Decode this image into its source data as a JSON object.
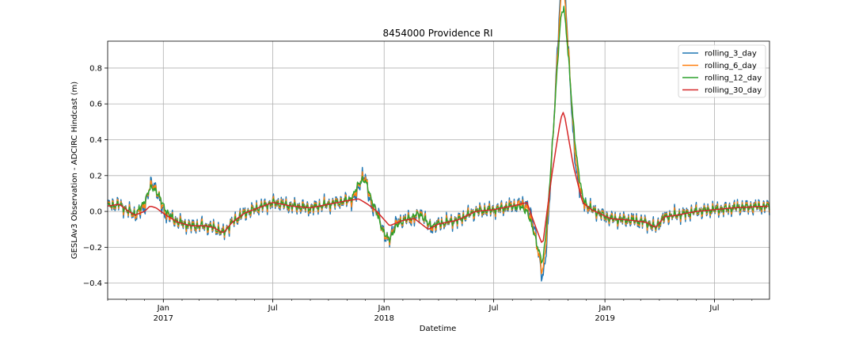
{
  "chart_data": {
    "type": "line",
    "title": "8454000 Providence RI",
    "xlabel": "Datetime",
    "ylabel": "GESLAv3 Observation - ADCIRC Hindcast (m)",
    "x_range": [
      "2016-10-01",
      "2019-09-30"
    ],
    "ylim": [
      -0.49,
      0.95
    ],
    "y_ticks": [
      -0.4,
      -0.2,
      0.0,
      0.2,
      0.4,
      0.6,
      0.8
    ],
    "y_tick_labels": [
      "−0.4",
      "−0.2",
      "0.0",
      "0.2",
      "0.4",
      "0.6",
      "0.8"
    ],
    "x_major_ticks": [
      {
        "date": "2017-01-01",
        "label": "Jan",
        "year": "2017"
      },
      {
        "date": "2017-07-01",
        "label": "Jul",
        "year": ""
      },
      {
        "date": "2018-01-01",
        "label": "Jan",
        "year": "2018"
      },
      {
        "date": "2018-07-01",
        "label": "Jul",
        "year": ""
      },
      {
        "date": "2019-01-01",
        "label": "Jan",
        "year": "2019"
      },
      {
        "date": "2019-07-01",
        "label": "Jul",
        "year": ""
      }
    ],
    "grid": true,
    "legend_position": "top-right",
    "series": [
      {
        "name": "rolling_3_day",
        "color": "#1f77b4",
        "noise_amplitude": 0.025
      },
      {
        "name": "rolling_6_day",
        "color": "#ff7f0e",
        "noise_amplitude": 0.018
      },
      {
        "name": "rolling_12_day",
        "color": "#2ca02c",
        "noise_amplitude": 0.011
      },
      {
        "name": "rolling_30_day",
        "color": "#d62728",
        "noise_amplitude": 0.0
      }
    ],
    "baseline": [
      [
        "2016-10-01",
        0.03
      ],
      [
        "2016-10-20",
        0.04
      ],
      [
        "2016-11-05",
        0.0
      ],
      [
        "2016-11-15",
        -0.02
      ],
      [
        "2016-12-01",
        0.0
      ],
      [
        "2016-12-10",
        0.03
      ],
      [
        "2016-12-20",
        0.02
      ],
      [
        "2017-01-05",
        -0.02
      ],
      [
        "2017-01-25",
        -0.06
      ],
      [
        "2017-02-15",
        -0.08
      ],
      [
        "2017-03-10",
        -0.08
      ],
      [
        "2017-03-25",
        -0.09
      ],
      [
        "2017-04-10",
        -0.12
      ],
      [
        "2017-04-25",
        -0.06
      ],
      [
        "2017-05-15",
        -0.01
      ],
      [
        "2017-06-15",
        0.03
      ],
      [
        "2017-07-01",
        0.05
      ],
      [
        "2017-08-01",
        0.03
      ],
      [
        "2017-09-01",
        0.02
      ],
      [
        "2017-10-01",
        0.04
      ],
      [
        "2017-11-01",
        0.06
      ],
      [
        "2017-11-20",
        0.07
      ],
      [
        "2017-12-05",
        0.04
      ],
      [
        "2017-12-20",
        0.0
      ],
      [
        "2018-01-10",
        -0.08
      ],
      [
        "2018-02-01",
        -0.05
      ],
      [
        "2018-02-20",
        -0.04
      ],
      [
        "2018-03-15",
        -0.1
      ],
      [
        "2018-04-01",
        -0.07
      ],
      [
        "2018-05-01",
        -0.05
      ],
      [
        "2018-06-01",
        0.0
      ],
      [
        "2018-07-01",
        0.01
      ],
      [
        "2018-08-01",
        0.03
      ],
      [
        "2018-08-25",
        0.05
      ],
      [
        "2018-09-10",
        -0.1
      ],
      [
        "2018-09-20",
        -0.19
      ],
      [
        "2018-10-05",
        0.2
      ],
      [
        "2018-10-20",
        0.52
      ],
      [
        "2018-10-25",
        0.56
      ],
      [
        "2018-11-10",
        0.25
      ],
      [
        "2018-11-25",
        0.05
      ],
      [
        "2018-12-10",
        0.01
      ],
      [
        "2019-01-10",
        -0.04
      ],
      [
        "2019-02-15",
        -0.05
      ],
      [
        "2019-03-10",
        -0.06
      ],
      [
        "2019-03-25",
        -0.09
      ],
      [
        "2019-04-10",
        -0.03
      ],
      [
        "2019-05-01",
        -0.02
      ],
      [
        "2019-06-01",
        0.0
      ],
      [
        "2019-07-01",
        0.01
      ],
      [
        "2019-08-01",
        0.02
      ],
      [
        "2019-09-30",
        0.03
      ]
    ],
    "events": [
      [
        "2016-12-15",
        0.13,
        0.04
      ],
      [
        "2017-11-28",
        0.15,
        0.03
      ],
      [
        "2018-01-05",
        -0.1,
        0.03
      ],
      [
        "2018-03-05",
        0.06,
        0.03
      ],
      [
        "2018-09-25",
        -0.22,
        0.06
      ],
      [
        "2018-10-15",
        0.25,
        0.05
      ],
      [
        "2018-10-28",
        0.3,
        0.04
      ],
      [
        "2018-09-08",
        0.05,
        0.02
      ]
    ]
  }
}
